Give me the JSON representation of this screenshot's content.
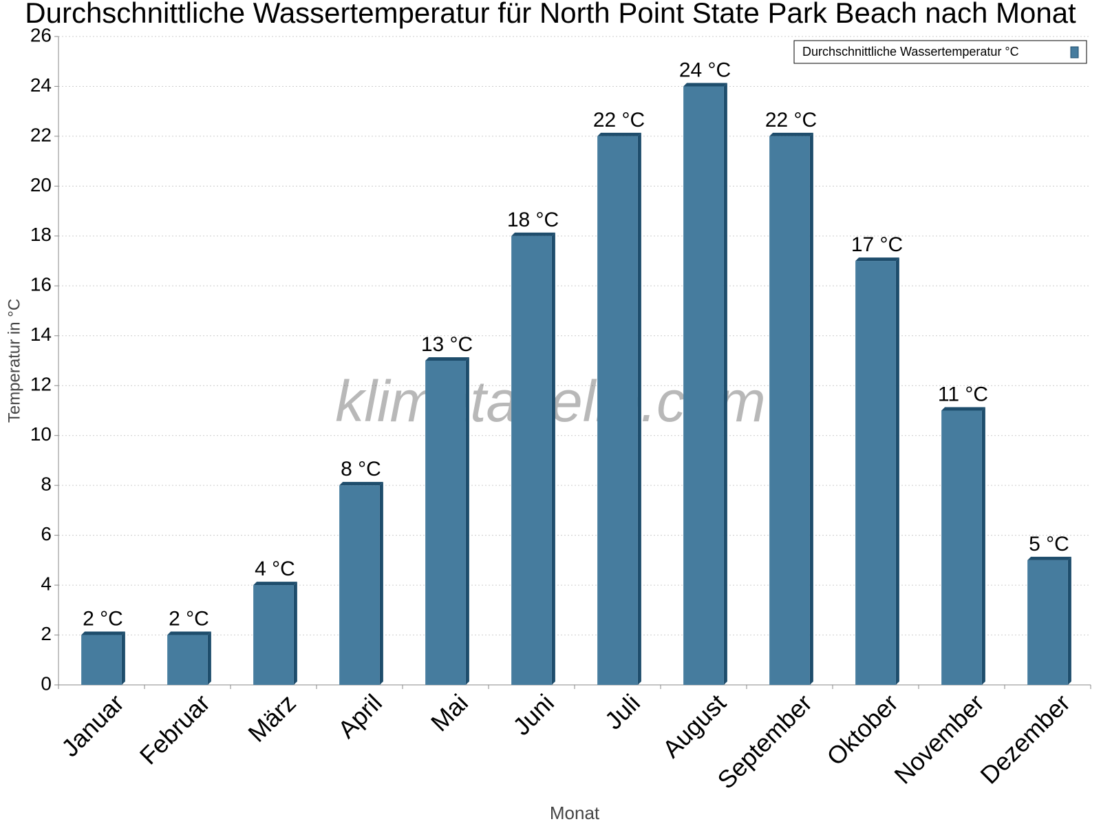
{
  "chart_data": {
    "type": "bar",
    "title": "Durchschnittliche Wassertemperatur für North Point State Park Beach nach Monat",
    "x_label": "Monat",
    "y_label": "Temperatur in °C",
    "watermark": "klimatabelle.com",
    "categories": [
      "Januar",
      "Februar",
      "März",
      "April",
      "Mai",
      "Juni",
      "Juli",
      "August",
      "September",
      "Oktober",
      "November",
      "Dezember"
    ],
    "series": [
      {
        "name": "Durchschnittliche Wassertemperatur °C",
        "color": "#467c9e",
        "values": [
          2,
          2,
          4,
          8,
          13,
          18,
          22,
          24,
          22,
          17,
          11,
          5
        ],
        "value_labels": [
          "2 °C",
          "2 °C",
          "4 °C",
          "8 °C",
          "13 °C",
          "18 °C",
          "22 °C",
          "24 °C",
          "22 °C",
          "17 °C",
          "11 °C",
          "5 °C"
        ]
      }
    ],
    "ylim": [
      0,
      26
    ],
    "yticks": [
      0,
      2,
      4,
      6,
      8,
      10,
      12,
      14,
      16,
      18,
      20,
      22,
      24,
      26
    ],
    "grid": true,
    "legend": "top-right"
  }
}
